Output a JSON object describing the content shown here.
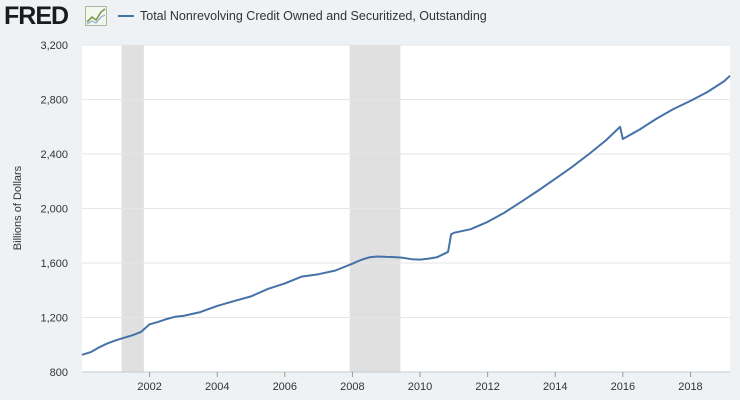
{
  "header": {
    "logo_text": "FRED",
    "logo_icon": "line-chart-icon"
  },
  "chart_data": {
    "type": "line",
    "title": "",
    "xlabel": "",
    "ylabel": "Billions of Dollars",
    "series": [
      {
        "name": "Total Nonrevolving Credit Owned and Securitized, Outstanding",
        "color": "#4572a7",
        "points": [
          [
            2000.0,
            926
          ],
          [
            2000.25,
            945
          ],
          [
            2000.5,
            980
          ],
          [
            2000.75,
            1010
          ],
          [
            2001.0,
            1033
          ],
          [
            2001.25,
            1052
          ],
          [
            2001.5,
            1070
          ],
          [
            2001.75,
            1095
          ],
          [
            2002.0,
            1150
          ],
          [
            2002.25,
            1168
          ],
          [
            2002.5,
            1188
          ],
          [
            2002.75,
            1205
          ],
          [
            2003.0,
            1212
          ],
          [
            2003.5,
            1240
          ],
          [
            2004.0,
            1285
          ],
          [
            2004.5,
            1320
          ],
          [
            2005.0,
            1355
          ],
          [
            2005.5,
            1410
          ],
          [
            2006.0,
            1450
          ],
          [
            2006.5,
            1500
          ],
          [
            2007.0,
            1518
          ],
          [
            2007.5,
            1545
          ],
          [
            2008.0,
            1595
          ],
          [
            2008.25,
            1622
          ],
          [
            2008.5,
            1642
          ],
          [
            2008.75,
            1648
          ],
          [
            2009.0,
            1645
          ],
          [
            2009.25,
            1643
          ],
          [
            2009.5,
            1638
          ],
          [
            2009.75,
            1628
          ],
          [
            2010.0,
            1625
          ],
          [
            2010.25,
            1632
          ],
          [
            2010.5,
            1642
          ],
          [
            2010.75,
            1672
          ],
          [
            2010.83,
            1682
          ],
          [
            2010.92,
            1810
          ],
          [
            2011.0,
            1822
          ],
          [
            2011.5,
            1848
          ],
          [
            2012.0,
            1902
          ],
          [
            2012.5,
            1970
          ],
          [
            2013.0,
            2050
          ],
          [
            2013.5,
            2132
          ],
          [
            2014.0,
            2218
          ],
          [
            2014.5,
            2305
          ],
          [
            2015.0,
            2400
          ],
          [
            2015.5,
            2500
          ],
          [
            2015.92,
            2600
          ],
          [
            2016.0,
            2510
          ],
          [
            2016.5,
            2580
          ],
          [
            2017.0,
            2660
          ],
          [
            2017.5,
            2730
          ],
          [
            2018.0,
            2790
          ],
          [
            2018.5,
            2855
          ],
          [
            2019.0,
            2935
          ],
          [
            2019.17,
            2975
          ]
        ]
      }
    ],
    "recessions": [
      [
        2001.17,
        2001.83
      ],
      [
        2007.92,
        2009.42
      ]
    ],
    "x_ticks": [
      "2002",
      "2004",
      "2006",
      "2008",
      "2010",
      "2012",
      "2014",
      "2016",
      "2018"
    ],
    "y_ticks": [
      "800",
      "1,200",
      "1,600",
      "2,000",
      "2,400",
      "2,800",
      "3,200"
    ],
    "xlim": [
      2000.0,
      2019.17
    ],
    "ylim": [
      800,
      3200
    ],
    "grid": true,
    "legend_position": "top-left",
    "colors": {
      "line": "#4572a7",
      "recession": "#e0e0e0",
      "grid": "#e6e6e6",
      "plot_bg": "#ffffff"
    }
  }
}
